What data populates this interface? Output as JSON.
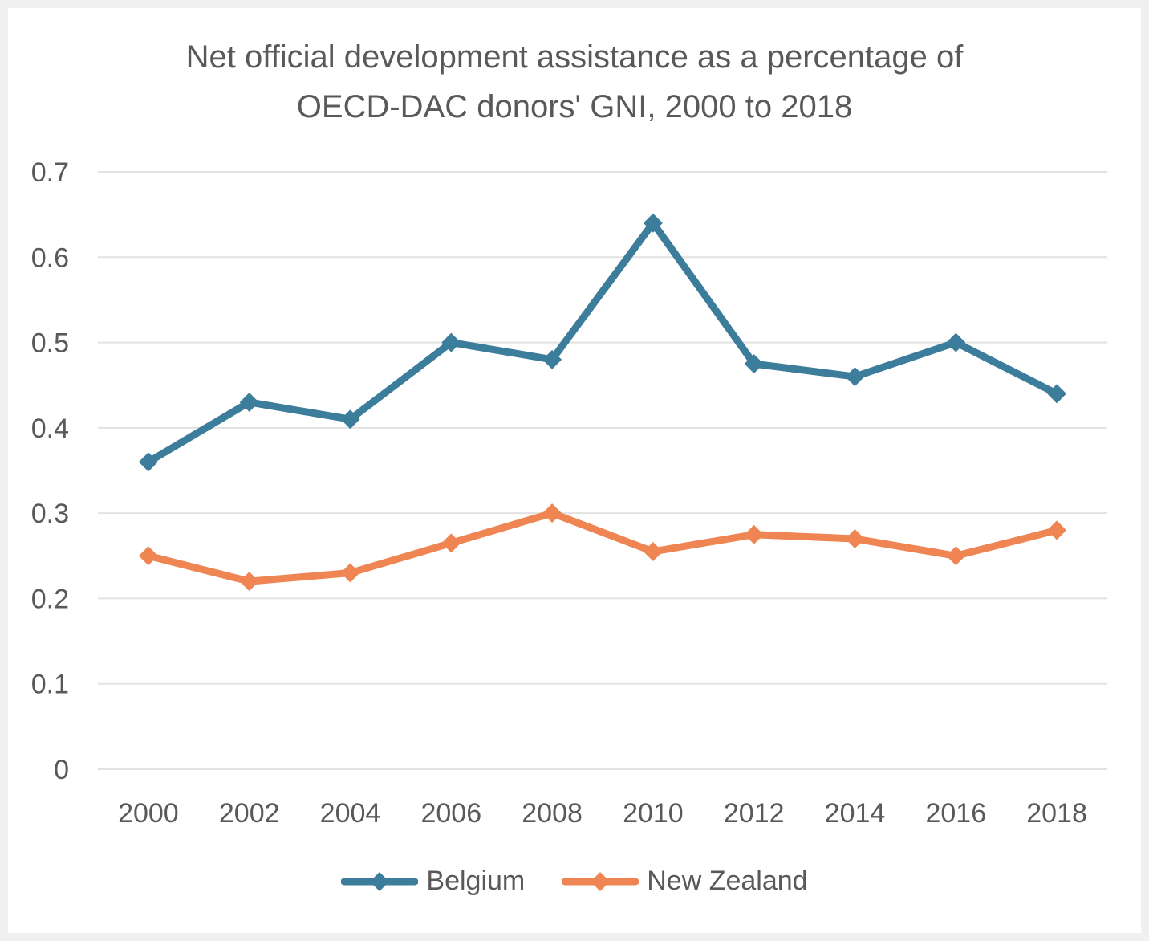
{
  "chart_data": {
    "type": "line",
    "title_lines": [
      "Net official development assistance as a percentage of",
      "OECD-DAC donors' GNI, 2000 to 2018"
    ],
    "xlabel": "",
    "ylabel": "",
    "categories": [
      "2000",
      "2002",
      "2004",
      "2006",
      "2008",
      "2010",
      "2012",
      "2014",
      "2016",
      "2018"
    ],
    "ylim": [
      0,
      0.7
    ],
    "yticks": [
      "0",
      "0.1",
      "0.2",
      "0.3",
      "0.4",
      "0.5",
      "0.6",
      "0.7"
    ],
    "grid": true,
    "legend_position": "bottom",
    "series": [
      {
        "name": "Belgium",
        "color": "#3d7d9c",
        "marker": "diamond",
        "values": [
          0.36,
          0.43,
          0.41,
          0.5,
          0.48,
          0.64,
          0.475,
          0.46,
          0.5,
          0.44
        ]
      },
      {
        "name": "New Zealand",
        "color": "#ee8553",
        "marker": "diamond",
        "values": [
          0.25,
          0.22,
          0.23,
          0.265,
          0.3,
          0.255,
          0.275,
          0.27,
          0.25,
          0.28
        ]
      }
    ]
  }
}
